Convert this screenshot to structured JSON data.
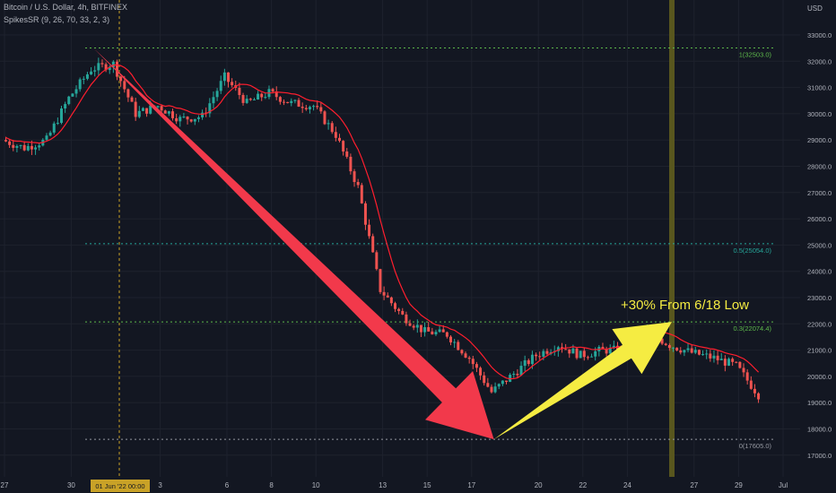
{
  "header": {
    "symbol_line": "Bitcoin / U.S. Dollar, 4h, BITFINEX",
    "indicator_line": "SpikesSR (9, 26, 70, 33, 2, 3)"
  },
  "currency": "USD",
  "annotation": "+30% From 6/18 Low",
  "crosshair_date": "01 Jun '22  00:00",
  "colors": {
    "background": "#131722",
    "up": "#26a69a",
    "down": "#ef5350",
    "ma_line": "#ff1e2e",
    "red_arrow": "#f2394b",
    "yellow_arrow": "#f5ec42",
    "fib_green": "#4caf50",
    "fib_teal": "#26a69a",
    "highlight_band": "#5c5a1f",
    "annotation_text": "#f5ec42"
  },
  "chart_data": {
    "type": "candlestick",
    "y_axis": {
      "ticks": [
        "33000.0",
        "32000.0",
        "31000.0",
        "30000.0",
        "29000.0",
        "28000.0",
        "27000.0",
        "26000.0",
        "25000.0",
        "24000.0",
        "23000.0",
        "22000.0",
        "21000.0",
        "20000.0",
        "19000.0",
        "18000.0",
        "17000.0"
      ],
      "ylim": [
        16750,
        33800
      ]
    },
    "x_axis": {
      "ticks": [
        "27",
        "30",
        "3",
        "6",
        "8",
        "10",
        "13",
        "15",
        "17",
        "20",
        "22",
        "24",
        "27",
        "29",
        "Jul"
      ]
    },
    "fib_levels": [
      {
        "label": "1(32503.0)",
        "value": 32503.0,
        "color": "green"
      },
      {
        "label": "0.5(25054.0)",
        "value": 25054.0,
        "color": "teal"
      },
      {
        "label": "0.3(22074.4)",
        "value": 22074.4,
        "color": "green"
      },
      {
        "label": "0(17605.0)",
        "value": 17605.0,
        "color": "gray"
      }
    ],
    "price_path": [
      {
        "date": "2022-05-27",
        "price": 29000
      },
      {
        "date": "2022-05-28",
        "price": 28700
      },
      {
        "date": "2022-05-29",
        "price": 29000
      },
      {
        "date": "2022-05-30",
        "price": 30600
      },
      {
        "date": "2022-05-31",
        "price": 31700
      },
      {
        "date": "2022-06-01",
        "price": 31900
      },
      {
        "date": "2022-06-02",
        "price": 30000
      },
      {
        "date": "2022-06-03",
        "price": 30300
      },
      {
        "date": "2022-06-04",
        "price": 29800
      },
      {
        "date": "2022-06-05",
        "price": 29900
      },
      {
        "date": "2022-06-06",
        "price": 31400
      },
      {
        "date": "2022-06-07",
        "price": 30400
      },
      {
        "date": "2022-06-08",
        "price": 30800
      },
      {
        "date": "2022-06-09",
        "price": 30400
      },
      {
        "date": "2022-06-10",
        "price": 30300
      },
      {
        "date": "2022-06-11",
        "price": 29200
      },
      {
        "date": "2022-06-12",
        "price": 27200
      },
      {
        "date": "2022-06-13",
        "price": 23300
      },
      {
        "date": "2022-06-14",
        "price": 22300
      },
      {
        "date": "2022-06-15",
        "price": 21700
      },
      {
        "date": "2022-06-16",
        "price": 21600
      },
      {
        "date": "2022-06-17",
        "price": 20700
      },
      {
        "date": "2022-06-18",
        "price": 19400
      },
      {
        "date": "2022-06-19",
        "price": 20100
      },
      {
        "date": "2022-06-20",
        "price": 20800
      },
      {
        "date": "2022-06-21",
        "price": 21200
      },
      {
        "date": "2022-06-22",
        "price": 20800
      },
      {
        "date": "2022-06-23",
        "price": 21000
      },
      {
        "date": "2022-06-24",
        "price": 21000
      },
      {
        "date": "2022-06-25",
        "price": 21700
      },
      {
        "date": "2022-06-26",
        "price": 21200
      },
      {
        "date": "2022-06-27",
        "price": 20900
      },
      {
        "date": "2022-06-28",
        "price": 20700
      },
      {
        "date": "2022-06-29",
        "price": 20400
      },
      {
        "date": "2022-06-30",
        "price": 19300
      }
    ],
    "red_arrow": {
      "from": {
        "date": "2022-05-31",
        "price": 32503
      },
      "to": {
        "date": "2022-06-18",
        "price": 17605
      }
    },
    "yellow_arrow": {
      "from": {
        "date": "2022-06-18",
        "price": 17605
      },
      "to": {
        "date": "2022-06-26",
        "price": 22074
      }
    }
  }
}
